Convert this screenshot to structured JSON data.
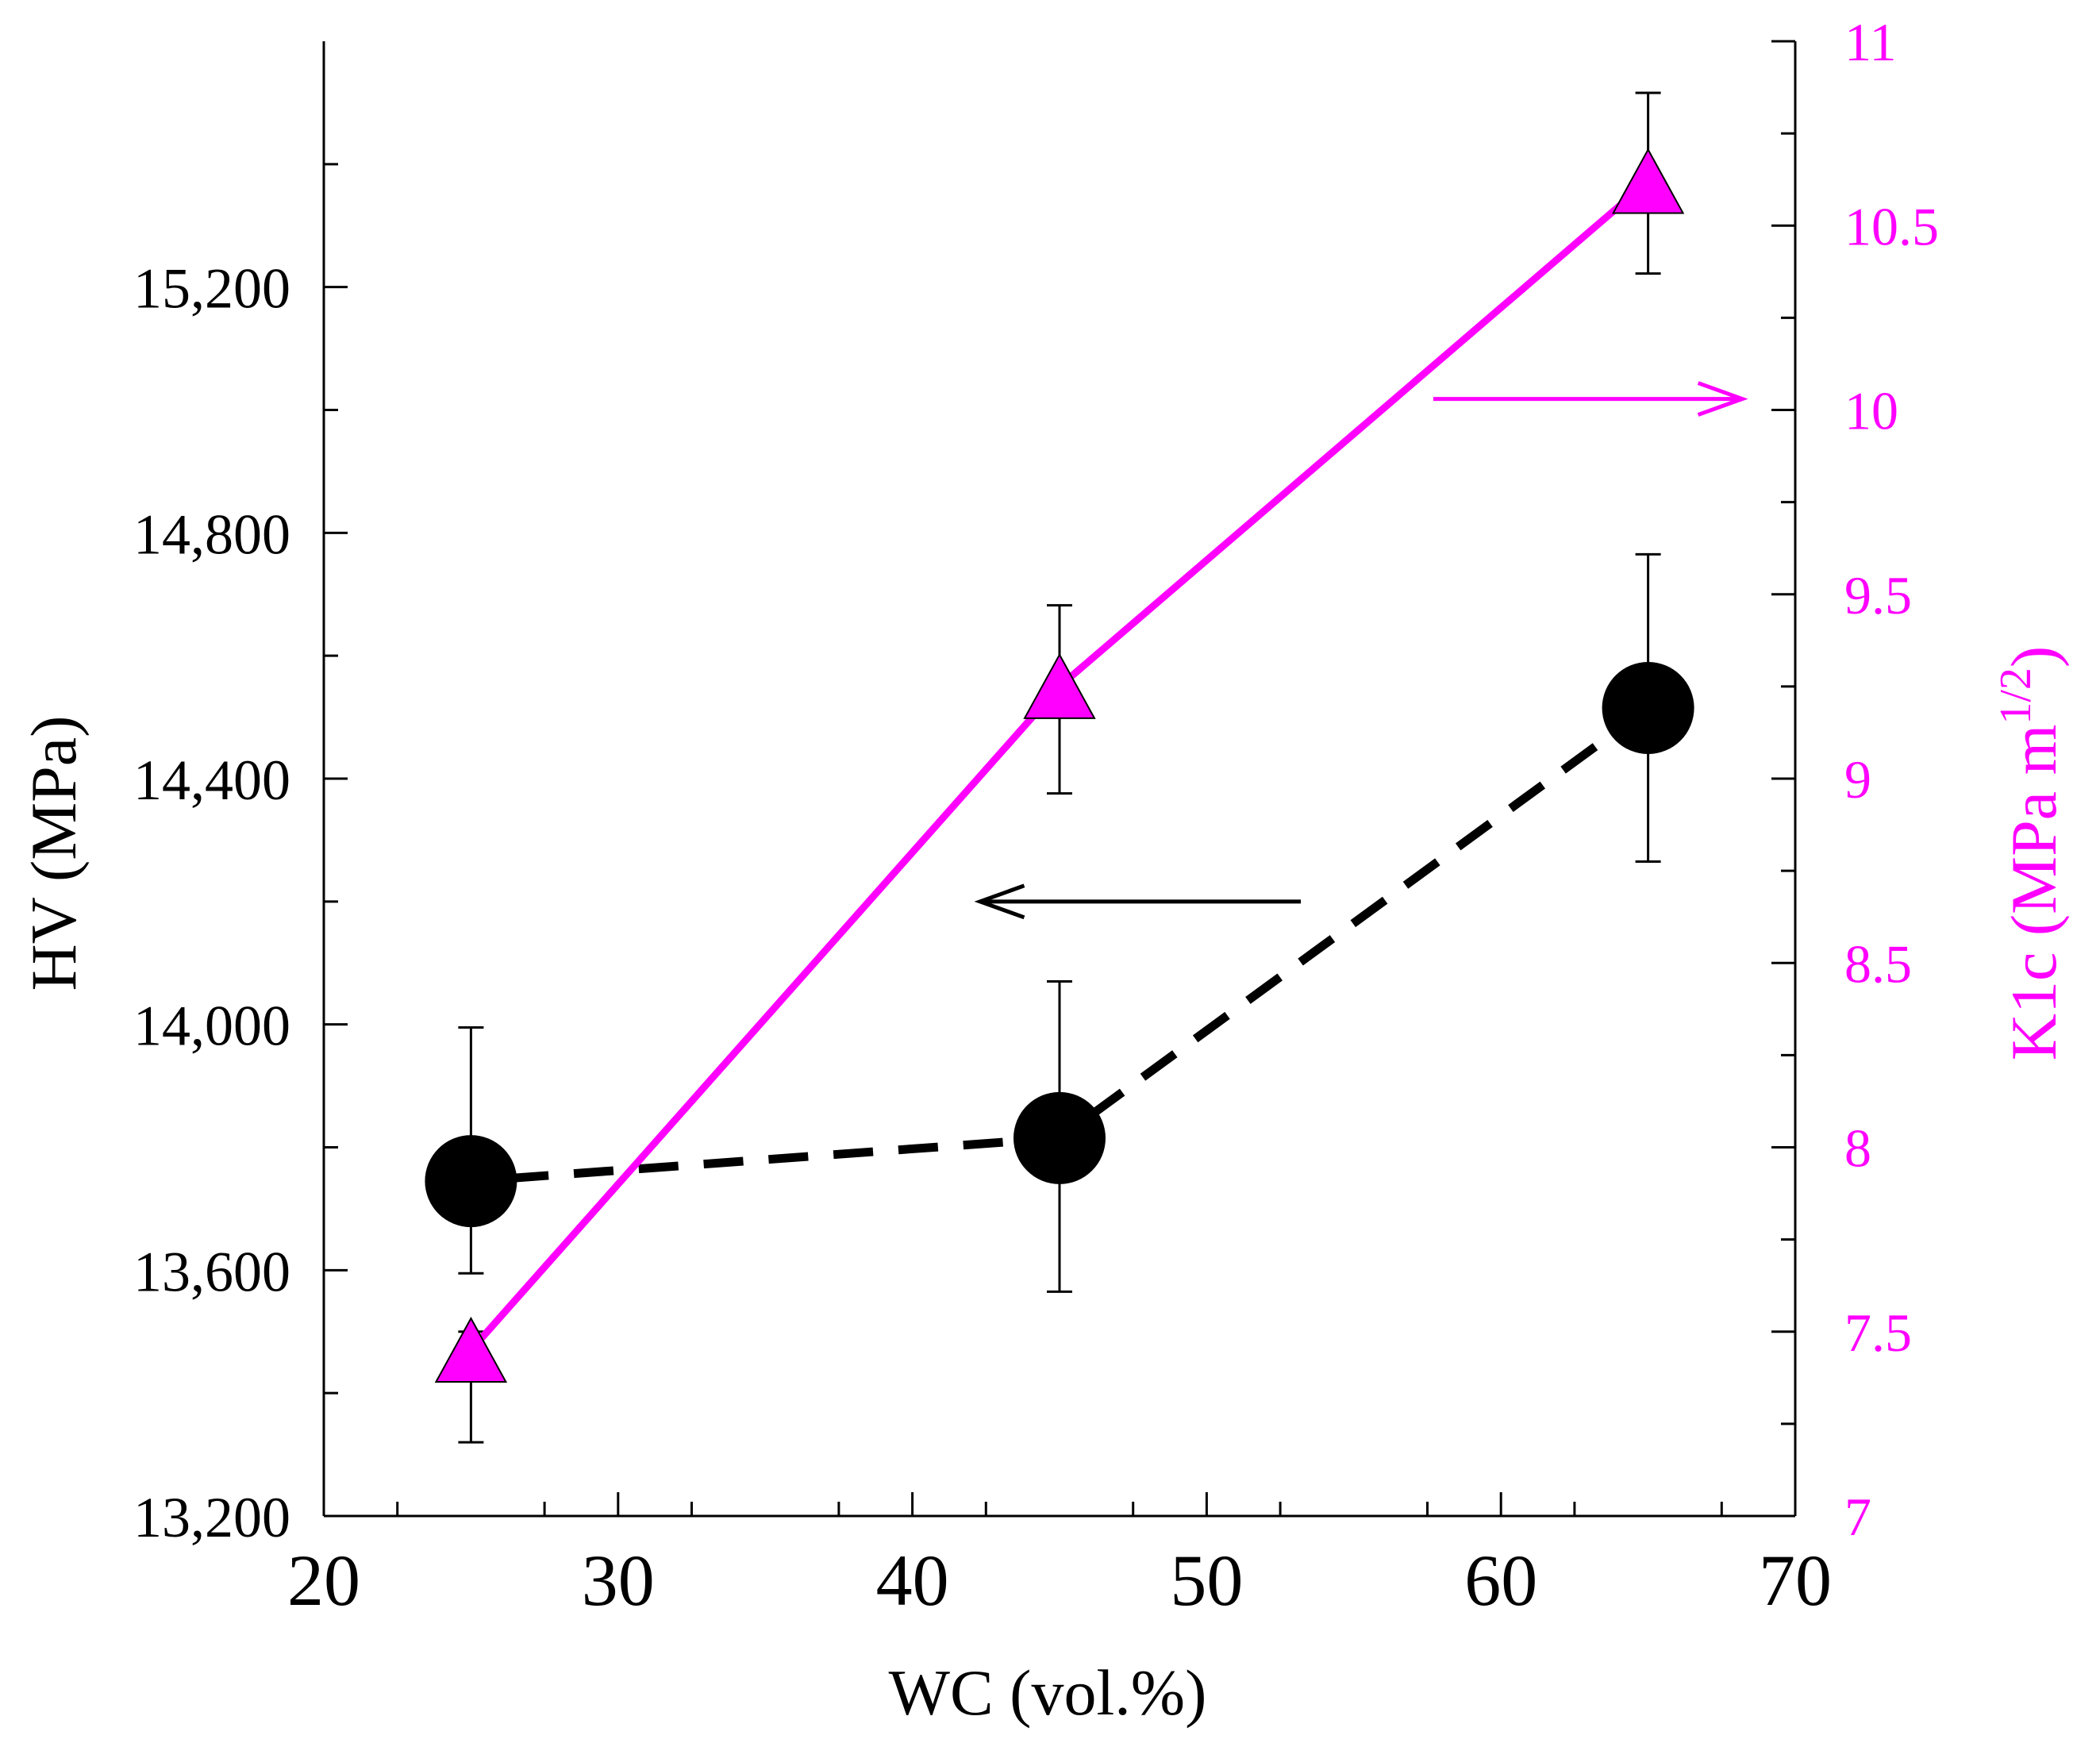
{
  "chart_data": {
    "type": "line",
    "title": "",
    "xlabel": "WC (vol.%)",
    "ylabel_left": "HV (MPa)",
    "ylabel_right": {
      "base": "K1c (MPa m",
      "superscript": "1/2",
      "tail": ")"
    },
    "xlim": [
      20,
      70
    ],
    "ylim_left": [
      13200,
      15600
    ],
    "ylim_right": [
      7,
      11
    ],
    "x_ticks": [
      "20",
      "30",
      "40",
      "50",
      "60",
      "70"
    ],
    "y_left_ticks": [
      "13,200",
      "13,600",
      "14,000",
      "14,400",
      "14,800",
      "15,200"
    ],
    "y_right_ticks": [
      "7",
      "7.5",
      "8",
      "8.5",
      "9",
      "9.5",
      "10",
      "10.5",
      "11"
    ],
    "series": [
      {
        "name": "HV",
        "axis": "left",
        "marker": "circle",
        "line": "dashed",
        "color": "#000000",
        "x": [
          25,
          45,
          65
        ],
        "y": [
          13745,
          13815,
          14515
        ],
        "err_low": [
          13595,
          13565,
          14265
        ],
        "err_high": [
          13995,
          14070,
          14765
        ]
      },
      {
        "name": "K1c",
        "axis": "right",
        "marker": "triangle",
        "line": "solid",
        "color": "#ff00ff",
        "x": [
          25,
          45,
          65
        ],
        "y": [
          7.45,
          9.25,
          10.62
        ],
        "err_low": [
          7.2,
          8.96,
          10.37
        ],
        "err_high": [
          7.5,
          9.47,
          10.86
        ]
      }
    ],
    "annotations": [
      {
        "type": "arrow",
        "direction": "left",
        "color": "#000000",
        "indicates": "HV series uses left axis"
      },
      {
        "type": "arrow",
        "direction": "right",
        "color": "#ff00ff",
        "indicates": "K1c series uses right axis"
      }
    ]
  }
}
